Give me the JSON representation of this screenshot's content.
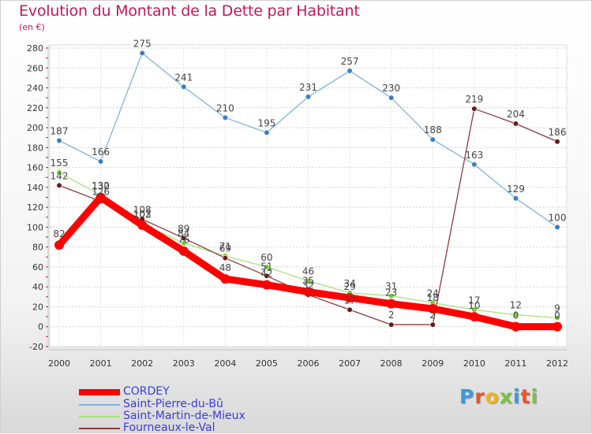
{
  "chart_data": {
    "type": "line",
    "title": "Evolution du Montant de la Dette par Habitant",
    "subtitle": "(en €)",
    "x": [
      "2000",
      "2001",
      "2002",
      "2003",
      "2004",
      "2005",
      "2006",
      "2007",
      "2008",
      "2009",
      "2010",
      "2011",
      "2012"
    ],
    "y_ticks": [
      -20,
      0,
      20,
      40,
      60,
      80,
      100,
      120,
      140,
      160,
      180,
      200,
      220,
      240,
      260,
      280
    ],
    "ylim": [
      -20,
      280
    ],
    "grid": true,
    "legend_position": "bottom-left",
    "series": [
      {
        "name": "CORDEY",
        "color": "#ff0000",
        "values": [
          82,
          130,
          102,
          76,
          48,
          42,
          35,
          29,
          23,
          18,
          10,
          0,
          0
        ]
      },
      {
        "name": "Saint-Pierre-du-Bû",
        "color": "#7fb2e0",
        "marker": "#3a7fc4",
        "values": [
          187,
          166,
          275,
          241,
          210,
          195,
          231,
          257,
          230,
          188,
          163,
          129,
          100
        ]
      },
      {
        "name": "Saint-Martin-de-Mieux",
        "color": "#a8e27a",
        "marker": "#6fcf3a",
        "values": [
          155,
          132,
          103,
          84,
          71,
          60,
          46,
          34,
          31,
          24,
          17,
          12,
          9
        ]
      },
      {
        "name": "Fourneaux-le-Val",
        "color": "#8b3a3a",
        "marker": "#6b1a1a",
        "values": [
          142,
          126,
          108,
          89,
          69,
          51,
          32,
          17,
          2,
          2,
          219,
          204,
          186
        ]
      }
    ]
  },
  "logo": {
    "text": "Proxiti"
  }
}
